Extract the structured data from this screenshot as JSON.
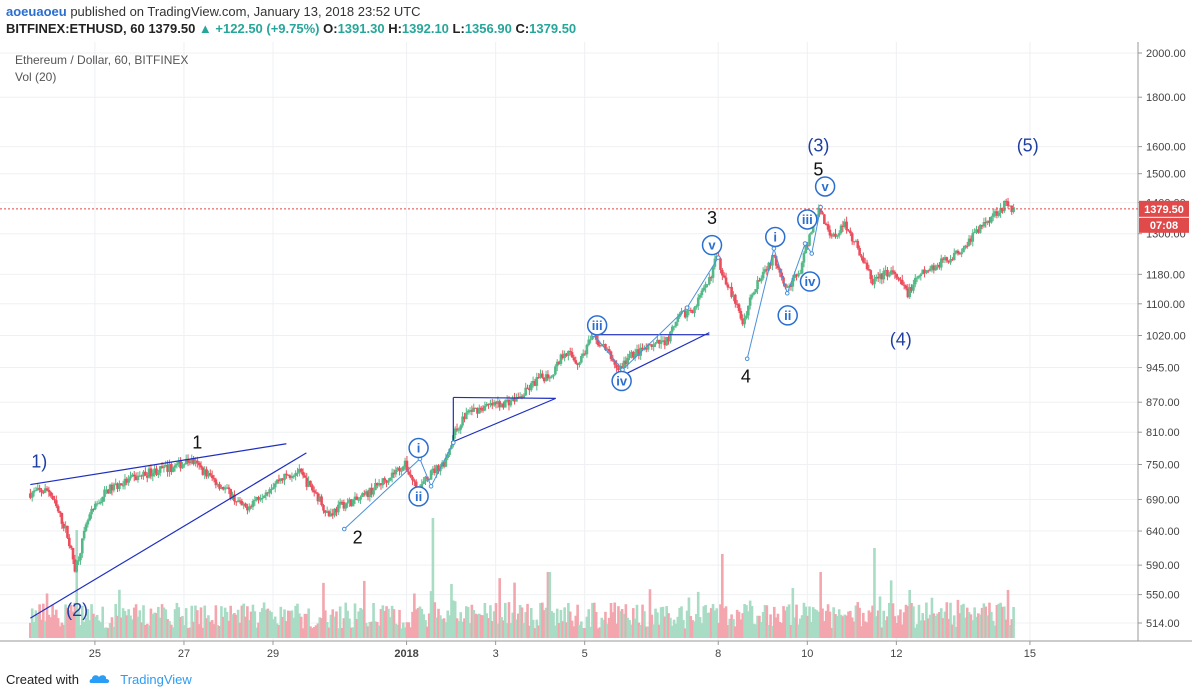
{
  "header": {
    "user": "aoeuaoeu",
    "published": "published on TradingView.com, January 13, 2018 23:52 UTC",
    "symbol": "BITFINEX:ETHUSD, 60",
    "change": "1379.50 ",
    "change_arrow": "▲",
    "change_pct": "+122.50 (+9.75%)",
    "o_label": "O:",
    "o_value": "1391.30",
    "h_label": "H:",
    "h_value": "1392.10",
    "l_label": "L:",
    "l_value": "1356.90",
    "c_label": "C:",
    "c_value": "1379.50"
  },
  "legend": {
    "main": "Ethereum / Dollar, 60, BITFINEX",
    "vol": "Vol (20)"
  },
  "footer": {
    "created": "Created with",
    "brand": "TradingView"
  },
  "colors": {
    "up": "#53b987",
    "down": "#eb4d5c",
    "vol_up": "#a8dcc4",
    "vol_down": "#f3a6ae",
    "wave_line": "#1f2fbf",
    "wave_light": "#4a90d9",
    "price_line": "#e04a4a"
  },
  "chart_data": {
    "type": "candlestick",
    "y_scale": "log",
    "ylim": [
      510,
      2030
    ],
    "y_ticks": [
      514,
      550,
      590,
      640,
      690,
      750,
      810,
      870,
      945,
      1020,
      1100,
      1180,
      1300,
      1400,
      1500,
      1600,
      1800,
      2000
    ],
    "y_tick_labels": [
      "514.00",
      "550.00",
      "590.00",
      "640.00",
      "690.00",
      "750.00",
      "810.00",
      "870.00",
      "945.00",
      "1020.00",
      "1100.00",
      "1180.00",
      "1300.00",
      "1400.00",
      "1500.00",
      "1600.00",
      "1800.00",
      "2000.00"
    ],
    "x_ticks": [
      {
        "day": 25,
        "label": "25"
      },
      {
        "day": 27,
        "label": "27"
      },
      {
        "day": 29,
        "label": "29"
      },
      {
        "day": 32,
        "label": "2018"
      },
      {
        "day": 34,
        "label": "3"
      },
      {
        "day": 36,
        "label": "5"
      },
      {
        "day": 39,
        "label": "8"
      },
      {
        "day": 41,
        "label": "10"
      },
      {
        "day": 43,
        "label": "12"
      },
      {
        "day": 46,
        "label": "15"
      }
    ],
    "xlim": [
      23.55,
      47.1
    ],
    "last_price": "1379.50",
    "countdown": "07:08",
    "path": [
      [
        23.55,
        700
      ],
      [
        24.0,
        706
      ],
      [
        24.4,
        640
      ],
      [
        24.6,
        585
      ],
      [
        24.9,
        660
      ],
      [
        25.3,
        705
      ],
      [
        25.8,
        722
      ],
      [
        26.3,
        737
      ],
      [
        26.8,
        745
      ],
      [
        27.2,
        758
      ],
      [
        27.6,
        730
      ],
      [
        28.0,
        705
      ],
      [
        28.4,
        675
      ],
      [
        28.8,
        700
      ],
      [
        29.2,
        725
      ],
      [
        29.6,
        738
      ],
      [
        30.0,
        700
      ],
      [
        30.3,
        665
      ],
      [
        30.6,
        682
      ],
      [
        31.0,
        690
      ],
      [
        31.5,
        720
      ],
      [
        32.0,
        750
      ],
      [
        32.3,
        705
      ],
      [
        32.6,
        735
      ],
      [
        32.9,
        755
      ],
      [
        33.1,
        805
      ],
      [
        33.4,
        850
      ],
      [
        33.8,
        860
      ],
      [
        34.2,
        868
      ],
      [
        34.6,
        880
      ],
      [
        35.0,
        920
      ],
      [
        35.3,
        930
      ],
      [
        35.6,
        985
      ],
      [
        35.9,
        955
      ],
      [
        36.2,
        1015
      ],
      [
        36.5,
        990
      ],
      [
        36.8,
        940
      ],
      [
        37.1,
        975
      ],
      [
        37.5,
        990
      ],
      [
        37.9,
        1010
      ],
      [
        38.2,
        1070
      ],
      [
        38.5,
        1090
      ],
      [
        38.8,
        1150
      ],
      [
        39.0,
        1230
      ],
      [
        39.3,
        1140
      ],
      [
        39.6,
        1050
      ],
      [
        39.8,
        1130
      ],
      [
        40.0,
        1180
      ],
      [
        40.3,
        1230
      ],
      [
        40.6,
        1140
      ],
      [
        40.9,
        1195
      ],
      [
        41.1,
        1300
      ],
      [
        41.3,
        1380
      ],
      [
        41.6,
        1290
      ],
      [
        41.9,
        1330
      ],
      [
        42.2,
        1250
      ],
      [
        42.5,
        1160
      ],
      [
        42.9,
        1190
      ],
      [
        43.3,
        1130
      ],
      [
        43.6,
        1180
      ],
      [
        44.0,
        1210
      ],
      [
        44.4,
        1240
      ],
      [
        44.8,
        1300
      ],
      [
        45.2,
        1360
      ],
      [
        45.5,
        1395
      ],
      [
        45.65,
        1380
      ]
    ],
    "volume_spikes": [
      [
        24.6,
        0.9
      ],
      [
        32.6,
        1.0
      ],
      [
        33.0,
        0.45
      ],
      [
        35.2,
        0.55
      ],
      [
        39.1,
        0.7
      ],
      [
        41.3,
        0.55
      ],
      [
        42.5,
        0.75
      ],
      [
        43.3,
        0.4
      ]
    ],
    "wave_labels": [
      {
        "text": "1)",
        "day": 23.75,
        "price": 755,
        "style": "blue"
      },
      {
        "text": "(2)",
        "day": 24.6,
        "price": 530,
        "style": "blue"
      },
      {
        "text": "1",
        "day": 27.3,
        "price": 790,
        "style": "black"
      },
      {
        "text": "2",
        "day": 30.9,
        "price": 630,
        "style": "black"
      },
      {
        "text": "3",
        "day": 38.86,
        "price": 1350,
        "style": "black"
      },
      {
        "text": "4",
        "day": 39.62,
        "price": 925,
        "style": "black"
      },
      {
        "text": "(3)",
        "day": 41.25,
        "price": 1605,
        "style": "blue"
      },
      {
        "text": "5",
        "day": 41.25,
        "price": 1515,
        "style": "black"
      },
      {
        "text": "(4)",
        "day": 43.1,
        "price": 1010,
        "style": "blue"
      },
      {
        "text": "(5)",
        "day": 45.95,
        "price": 1605,
        "style": "blue"
      }
    ],
    "circled_labels": [
      {
        "text": "i",
        "day": 32.27,
        "price": 780
      },
      {
        "text": "ii",
        "day": 32.27,
        "price": 695
      },
      {
        "text": "iii",
        "day": 36.28,
        "price": 1045
      },
      {
        "text": "iv",
        "day": 36.83,
        "price": 915
      },
      {
        "text": "v",
        "day": 38.86,
        "price": 1265
      },
      {
        "text": "i",
        "day": 40.28,
        "price": 1290
      },
      {
        "text": "ii",
        "day": 40.56,
        "price": 1070
      },
      {
        "text": "iii",
        "day": 41.0,
        "price": 1345
      },
      {
        "text": "iv",
        "day": 41.06,
        "price": 1160
      },
      {
        "text": "v",
        "day": 41.4,
        "price": 1455
      }
    ],
    "trend_lines": [
      {
        "from": [
          23.55,
          715
        ],
        "to": [
          29.3,
          788
        ]
      },
      {
        "from": [
          23.55,
          520
        ],
        "to": [
          29.75,
          771
        ]
      },
      {
        "from": [
          33.05,
          880
        ],
        "to": [
          35.35,
          878
        ]
      },
      {
        "from": [
          33.05,
          880
        ],
        "to": [
          33.05,
          792
        ]
      },
      {
        "from": [
          33.05,
          792
        ],
        "to": [
          35.35,
          878
        ]
      },
      {
        "from": [
          36.2,
          1022
        ],
        "to": [
          38.8,
          1022
        ]
      },
      {
        "from": [
          36.7,
          920
        ],
        "to": [
          38.8,
          1027
        ]
      }
    ],
    "wave_paths": [
      [
        [
          30.6,
          643
        ],
        [
          32.3,
          760
        ],
        [
          32.55,
          712
        ],
        [
          33.05,
          790
        ]
      ],
      [
        [
          36.2,
          1022
        ],
        [
          36.85,
          940
        ],
        [
          38.3,
          1090
        ],
        [
          39.0,
          1228
        ]
      ],
      [
        [
          39.65,
          965
        ],
        [
          40.25,
          1255
        ],
        [
          40.55,
          1128
        ],
        [
          40.95,
          1270
        ],
        [
          41.1,
          1240
        ],
        [
          41.3,
          1385
        ]
      ]
    ]
  }
}
